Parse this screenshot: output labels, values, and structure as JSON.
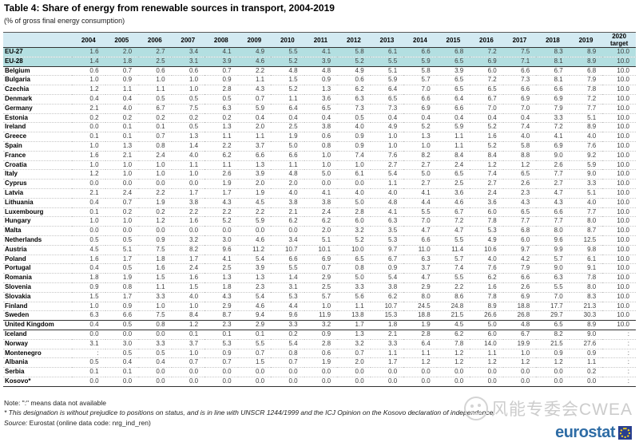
{
  "title": "Table 4: Share of energy from renewable sources in transport, 2004-2019",
  "subtitle": "(% of gross final energy consumption)",
  "table": {
    "columns": [
      "2004",
      "2005",
      "2006",
      "2007",
      "2008",
      "2009",
      "2010",
      "2011",
      "2012",
      "2013",
      "2014",
      "2015",
      "2016",
      "2017",
      "2018",
      "2019",
      "2020 target"
    ],
    "rows": [
      {
        "name": "EU-27",
        "highlight": true,
        "values": [
          "1.6",
          "2.0",
          "2.7",
          "3.4",
          "4.1",
          "4.9",
          "5.5",
          "4.1",
          "5.8",
          "6.1",
          "6.6",
          "6.8",
          "7.2",
          "7.5",
          "8.3",
          "8.9"
        ],
        "target": "10.0"
      },
      {
        "name": "EU-28",
        "highlight": true,
        "thick_bottom": true,
        "values": [
          "1.4",
          "1.8",
          "2.5",
          "3.1",
          "3.9",
          "4.6",
          "5.2",
          "3.9",
          "5.2",
          "5.5",
          "5.9",
          "6.5",
          "6.9",
          "7.1",
          "8.1",
          "8.9"
        ],
        "target": "10.0"
      },
      {
        "name": "Belgium",
        "values": [
          "0.6",
          "0.7",
          "0.6",
          "0.6",
          "0.7",
          "2.2",
          "4.8",
          "4.8",
          "4.9",
          "5.1",
          "5.8",
          "3.9",
          "6.0",
          "6.6",
          "6.7",
          "6.8"
        ],
        "target": "10.0"
      },
      {
        "name": "Bulgaria",
        "values": [
          "1.0",
          "0.9",
          "1.0",
          "1.0",
          "0.9",
          "1.1",
          "1.5",
          "0.9",
          "0.6",
          "5.9",
          "5.7",
          "6.5",
          "7.2",
          "7.3",
          "8.1",
          "7.9"
        ],
        "target": "10.0"
      },
      {
        "name": "Czechia",
        "values": [
          "1.2",
          "1.1",
          "1.1",
          "1.0",
          "2.8",
          "4.3",
          "5.2",
          "1.3",
          "6.2",
          "6.4",
          "7.0",
          "6.5",
          "6.5",
          "6.6",
          "6.6",
          "7.8"
        ],
        "target": "10.0"
      },
      {
        "name": "Denmark",
        "values": [
          "0.4",
          "0.4",
          "0.5",
          "0.5",
          "0.5",
          "0.7",
          "1.1",
          "3.6",
          "6.3",
          "6.5",
          "6.6",
          "6.4",
          "6.7",
          "6.9",
          "6.9",
          "7.2"
        ],
        "target": "10.0"
      },
      {
        "name": "Germany",
        "values": [
          "2.1",
          "4.0",
          "6.7",
          "7.5",
          "6.3",
          "5.9",
          "6.4",
          "6.5",
          "7.3",
          "7.3",
          "6.9",
          "6.6",
          "7.0",
          "7.0",
          "7.9",
          "7.7"
        ],
        "target": "10.0"
      },
      {
        "name": "Estonia",
        "values": [
          "0.2",
          "0.2",
          "0.2",
          "0.2",
          "0.2",
          "0.4",
          "0.4",
          "0.4",
          "0.5",
          "0.4",
          "0.4",
          "0.4",
          "0.4",
          "0.4",
          "3.3",
          "5.1"
        ],
        "target": "10.0"
      },
      {
        "name": "Ireland",
        "values": [
          "0.0",
          "0.1",
          "0.1",
          "0.5",
          "1.3",
          "2.0",
          "2.5",
          "3.8",
          "4.0",
          "4.9",
          "5.2",
          "5.9",
          "5.2",
          "7.4",
          "7.2",
          "8.9"
        ],
        "target": "10.0"
      },
      {
        "name": "Greece",
        "values": [
          "0.1",
          "0.1",
          "0.7",
          "1.3",
          "1.1",
          "1.1",
          "1.9",
          "0.6",
          "0.9",
          "1.0",
          "1.3",
          "1.1",
          "1.6",
          "4.0",
          "4.1",
          "4.0"
        ],
        "target": "10.0"
      },
      {
        "name": "Spain",
        "values": [
          "1.0",
          "1.3",
          "0.8",
          "1.4",
          "2.2",
          "3.7",
          "5.0",
          "0.8",
          "0.9",
          "1.0",
          "1.0",
          "1.1",
          "5.2",
          "5.8",
          "6.9",
          "7.6"
        ],
        "target": "10.0"
      },
      {
        "name": "France",
        "values": [
          "1.6",
          "2.1",
          "2.4",
          "4.0",
          "6.2",
          "6.6",
          "6.6",
          "1.0",
          "7.4",
          "7.6",
          "8.2",
          "8.4",
          "8.4",
          "8.8",
          "9.0",
          "9.2"
        ],
        "target": "10.0"
      },
      {
        "name": "Croatia",
        "values": [
          "1.0",
          "1.0",
          "1.0",
          "1.1",
          "1.1",
          "1.3",
          "1.1",
          "1.0",
          "1.0",
          "2.7",
          "2.7",
          "2.4",
          "1.2",
          "1.2",
          "2.6",
          "5.9"
        ],
        "target": "10.0"
      },
      {
        "name": "Italy",
        "values": [
          "1.2",
          "1.0",
          "1.0",
          "1.0",
          "2.6",
          "3.9",
          "4.8",
          "5.0",
          "6.1",
          "5.4",
          "5.0",
          "6.5",
          "7.4",
          "6.5",
          "7.7",
          "9.0"
        ],
        "target": "10.0"
      },
      {
        "name": "Cyprus",
        "values": [
          "0.0",
          "0.0",
          "0.0",
          "0.0",
          "1.9",
          "2.0",
          "2.0",
          "0.0",
          "0.0",
          "1.1",
          "2.7",
          "2.5",
          "2.7",
          "2.6",
          "2.7",
          "3.3"
        ],
        "target": "10.0"
      },
      {
        "name": "Latvia",
        "values": [
          "2.1",
          "2.4",
          "2.2",
          "1.7",
          "1.7",
          "1.9",
          "4.0",
          "4.1",
          "4.0",
          "4.0",
          "4.1",
          "3.6",
          "2.4",
          "2.3",
          "4.7",
          "5.1"
        ],
        "target": "10.0"
      },
      {
        "name": "Lithuania",
        "values": [
          "0.4",
          "0.7",
          "1.9",
          "3.8",
          "4.3",
          "4.5",
          "3.8",
          "3.8",
          "5.0",
          "4.8",
          "4.4",
          "4.6",
          "3.6",
          "4.3",
          "4.3",
          "4.0"
        ],
        "target": "10.0"
      },
      {
        "name": "Luxembourg",
        "values": [
          "0.1",
          "0.2",
          "0.2",
          "2.2",
          "2.2",
          "2.2",
          "2.1",
          "2.4",
          "2.8",
          "4.1",
          "5.5",
          "6.7",
          "6.0",
          "6.5",
          "6.6",
          "7.7"
        ],
        "target": "10.0"
      },
      {
        "name": "Hungary",
        "values": [
          "1.0",
          "1.0",
          "1.2",
          "1.6",
          "5.2",
          "5.9",
          "6.2",
          "6.2",
          "6.0",
          "6.3",
          "7.0",
          "7.2",
          "7.8",
          "7.7",
          "7.7",
          "8.0"
        ],
        "target": "10.0"
      },
      {
        "name": "Malta",
        "values": [
          "0.0",
          "0.0",
          "0.0",
          "0.0",
          "0.0",
          "0.0",
          "0.0",
          "2.0",
          "3.2",
          "3.5",
          "4.7",
          "4.7",
          "5.3",
          "6.8",
          "8.0",
          "8.7"
        ],
        "target": "10.0"
      },
      {
        "name": "Netherlands",
        "values": [
          "0.5",
          "0.5",
          "0.9",
          "3.2",
          "3.0",
          "4.6",
          "3.4",
          "5.1",
          "5.2",
          "5.3",
          "6.6",
          "5.5",
          "4.9",
          "6.0",
          "9.6",
          "12.5"
        ],
        "target": "10.0"
      },
      {
        "name": "Austria",
        "values": [
          "4.5",
          "5.1",
          "7.5",
          "8.2",
          "9.6",
          "11.2",
          "10.7",
          "10.1",
          "10.0",
          "9.7",
          "11.0",
          "11.4",
          "10.6",
          "9.7",
          "9.9",
          "9.8"
        ],
        "target": "10.0"
      },
      {
        "name": "Poland",
        "values": [
          "1.6",
          "1.7",
          "1.8",
          "1.7",
          "4.1",
          "5.4",
          "6.6",
          "6.9",
          "6.5",
          "6.7",
          "6.3",
          "5.7",
          "4.0",
          "4.2",
          "5.7",
          "6.1"
        ],
        "target": "10.0"
      },
      {
        "name": "Portugal",
        "values": [
          "0.4",
          "0.5",
          "1.6",
          "2.4",
          "2.5",
          "3.9",
          "5.5",
          "0.7",
          "0.8",
          "0.9",
          "3.7",
          "7.4",
          "7.6",
          "7.9",
          "9.0",
          "9.1"
        ],
        "target": "10.0"
      },
      {
        "name": "Romania",
        "values": [
          "1.8",
          "1.9",
          "1.5",
          "1.6",
          "1.3",
          "1.3",
          "1.4",
          "2.9",
          "5.0",
          "5.4",
          "4.7",
          "5.5",
          "6.2",
          "6.6",
          "6.3",
          "7.8"
        ],
        "target": "10.0"
      },
      {
        "name": "Slovenia",
        "values": [
          "0.9",
          "0.8",
          "1.1",
          "1.5",
          "1.8",
          "2.3",
          "3.1",
          "2.5",
          "3.3",
          "3.8",
          "2.9",
          "2.2",
          "1.6",
          "2.6",
          "5.5",
          "8.0"
        ],
        "target": "10.0"
      },
      {
        "name": "Slovakia",
        "values": [
          "1.5",
          "1.7",
          "3.3",
          "4.0",
          "4.3",
          "5.4",
          "5.3",
          "5.7",
          "5.6",
          "6.2",
          "8.0",
          "8.6",
          "7.8",
          "6.9",
          "7.0",
          "8.3"
        ],
        "target": "10.0"
      },
      {
        "name": "Finland",
        "values": [
          "1.0",
          "0.9",
          "1.0",
          "1.0",
          "2.9",
          "4.6",
          "4.4",
          "1.0",
          "1.1",
          "10.7",
          "24.5",
          "24.8",
          "8.9",
          "18.8",
          "17.7",
          "21.3"
        ],
        "target": "10.0"
      },
      {
        "name": "Sweden",
        "values": [
          "6.3",
          "6.6",
          "7.5",
          "8.4",
          "8.7",
          "9.4",
          "9.6",
          "11.9",
          "13.8",
          "15.3",
          "18.8",
          "21.5",
          "26.6",
          "26.8",
          "29.7",
          "30.3"
        ],
        "target": "10.0"
      },
      {
        "name": "United Kingdom",
        "thick_top": true,
        "thick_bottom": true,
        "values": [
          "0.4",
          "0.5",
          "0.8",
          "1.2",
          "2.3",
          "2.9",
          "3.3",
          "3.2",
          "1.7",
          "1.8",
          "1.9",
          "4.5",
          "5.0",
          "4.8",
          "6.5",
          "8.9"
        ],
        "target": "10.0"
      },
      {
        "name": "Iceland",
        "values": [
          "0.0",
          "0.0",
          "0.0",
          "0.1",
          "0.1",
          "0.1",
          "0.2",
          "0.9",
          "1.3",
          "2.1",
          "2.8",
          "6.2",
          "6.0",
          "6.7",
          "8.2",
          "9.0"
        ],
        "target": ":"
      },
      {
        "name": "Norway",
        "values": [
          "3.1",
          "3.0",
          "3.3",
          "3.7",
          "5.3",
          "5.5",
          "5.4",
          "2.8",
          "3.2",
          "3.3",
          "6.4",
          "7.8",
          "14.0",
          "19.9",
          "21.5",
          "27.6"
        ],
        "target": ":"
      },
      {
        "name": "Montenegro",
        "values": [
          ":",
          "0.5",
          "0.5",
          "1.0",
          "0.9",
          "0.7",
          "0.8",
          "0.6",
          "0.7",
          "1.1",
          "1.1",
          "1.2",
          "1.1",
          "1.0",
          "0.9",
          "0.9"
        ],
        "target": ":"
      },
      {
        "name": "Albania",
        "values": [
          "0.5",
          "0.4",
          "0.4",
          "0.7",
          "0.7",
          "1.5",
          "0.7",
          "1.9",
          "2.0",
          "1.7",
          "1.2",
          "1.2",
          "1.2",
          "1.2",
          "1.2",
          "1.1"
        ],
        "target": ":"
      },
      {
        "name": "Serbia",
        "values": [
          "0.1",
          "0.1",
          "0.0",
          "0.0",
          "0.0",
          "0.0",
          "0.0",
          "0.0",
          "0.0",
          "0.0",
          "0.0",
          "0.0",
          "0.0",
          "0.0",
          "0.0",
          "0.2"
        ],
        "target": ":"
      },
      {
        "name": "Kosovo*",
        "thick_bottom": true,
        "values": [
          "0.0",
          "0.0",
          "0.0",
          "0.0",
          "0.0",
          "0.0",
          "0.0",
          "0.0",
          "0.0",
          "0.0",
          "0.0",
          "0.0",
          "0.0",
          "0.0",
          "0.0",
          "0.0"
        ],
        "target": ":"
      }
    ]
  },
  "footer": {
    "note": "Note: \":\" means data not available",
    "footnote": "* This designation is without prejudice to positions on status, and is in line with UNSCR 1244/1999 and the ICJ Opinion on the Kosovo declaration of independence.",
    "source_label": "Source:",
    "source_text": " Eurostat (online data code: nrg_ind_ren)"
  },
  "watermark": {
    "text": "风能专委会CWEA"
  },
  "logo": {
    "text": "eurostat"
  },
  "colors": {
    "header_bg": "#d3eaf2",
    "eu_row_bg": "#b3dfe1",
    "rule_dark": "#333333",
    "rule_dotted": "#c6c6c6",
    "eurostat_blue": "#2e6ca5",
    "eu_flag_blue": "#283f8f",
    "star_yellow": "#ffd617",
    "watermark_gray": "#cccccc"
  }
}
